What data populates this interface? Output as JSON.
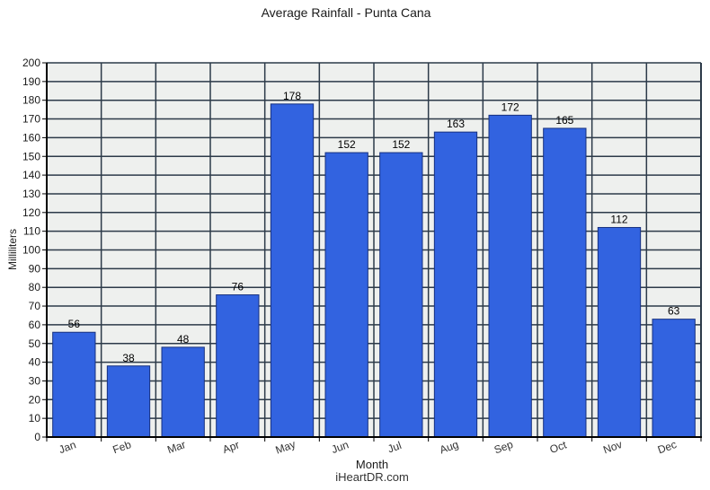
{
  "title": "Average Rainfall - Punta Cana",
  "footer": "iHeartDR.com",
  "chart_data": {
    "type": "bar",
    "categories": [
      "Jan",
      "Feb",
      "Mar",
      "Apr",
      "May",
      "Jun",
      "Jul",
      "Aug",
      "Sep",
      "Oct",
      "Nov",
      "Dec"
    ],
    "values": [
      56,
      38,
      48,
      76,
      178,
      152,
      152,
      163,
      172,
      165,
      112,
      63
    ],
    "title": "Average Rainfall - Punta Cana",
    "xlabel": "Month",
    "ylabel": "Milliliters",
    "ylim": [
      0,
      200
    ],
    "ytick_step": 10,
    "grid": "both",
    "legend": "none",
    "data_labels": true,
    "colors": {
      "bar_fill": "#3263e0",
      "bar_border": "#17317f",
      "plot_background": "#eef0ee",
      "gridline": "#2c3a49",
      "axis": "#000000",
      "tick_label": "#1a1a1a",
      "month_label": "#333333"
    }
  }
}
